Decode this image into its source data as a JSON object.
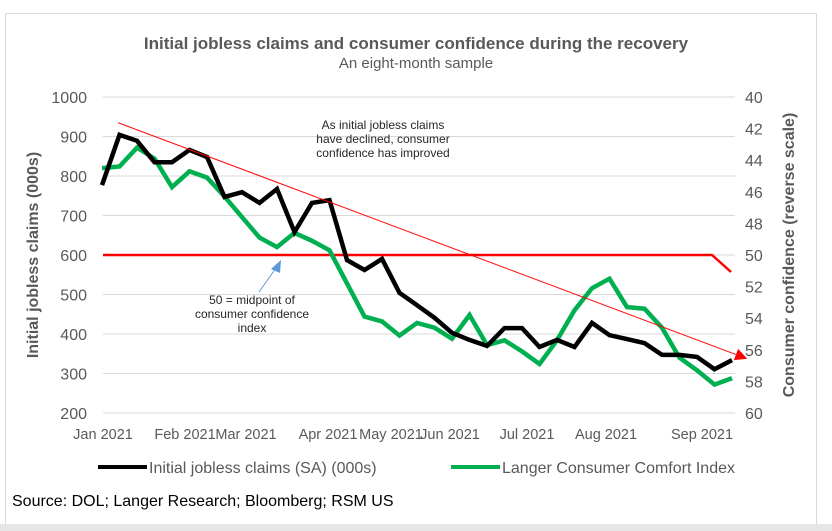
{
  "chart_data": {
    "type": "line",
    "title": "Initial jobless claims and consumer confidence during the recovery",
    "subtitle": "An eight-month sample",
    "xlabel": "",
    "ylabel_left": "Initial jobless claims (000s)",
    "ylabel_right": "Consumer confidence (reverse scale)",
    "x_tick_labels": [
      "Jan 2021",
      "Feb 2021",
      "Mar 2021",
      "Apr 2021",
      "May 2021",
      "Jun 2021",
      "Jul 2021",
      "Aug 2021",
      "Sep 2021"
    ],
    "ylim_left": [
      200,
      1000
    ],
    "yticks_left": [
      1000,
      900,
      800,
      700,
      600,
      500,
      400,
      300,
      200
    ],
    "ylim_right": [
      40,
      60
    ],
    "right_axis_reversed": true,
    "yticks_right": [
      40,
      42,
      44,
      46,
      48,
      50,
      52,
      54,
      56,
      58,
      60
    ],
    "grid": true,
    "legend_position": "bottom",
    "frequency": "weekly",
    "series": [
      {
        "name": "Initial jobless claims (SA) (000s)",
        "axis": "left",
        "color": "#000000",
        "values": [
          777,
          904,
          889,
          835,
          835,
          866,
          848,
          747,
          759,
          732,
          767,
          658,
          732,
          739,
          587,
          562,
          590,
          504,
          473,
          441,
          403,
          385,
          370,
          415,
          415,
          367,
          385,
          367,
          428,
          397,
          387,
          377,
          347,
          347,
          342,
          311,
          334
        ]
      },
      {
        "name": "Langer Consumer Comfort Index",
        "axis": "right",
        "color": "#00b050",
        "values": [
          44.5,
          44.4,
          43.2,
          43.9,
          45.7,
          44.7,
          45.1,
          46.3,
          47.6,
          48.9,
          49.5,
          48.6,
          49.1,
          49.7,
          51.8,
          53.9,
          54.2,
          55.1,
          54.3,
          54.6,
          55.3,
          53.8,
          55.7,
          55.4,
          56.1,
          56.9,
          55.4,
          53.5,
          52.1,
          51.5,
          53.3,
          53.4,
          54.6,
          56.5,
          57.3,
          58.2,
          57.8
        ]
      }
    ],
    "reference_line": {
      "label": "50 = midpoint of consumer confidence index",
      "value_right_axis": 50,
      "color": "#ff0000"
    },
    "trend_arrow": {
      "color": "#ff0000",
      "from_left_value": 935,
      "to_right_value": 56.3
    },
    "annotations": [
      {
        "text": [
          "As initial jobless claims",
          "have declined, consumer",
          "confidence has improved"
        ]
      },
      {
        "text": [
          "50 = midpoint of",
          "consumer confidence",
          "index"
        ]
      }
    ],
    "source": "Source: DOL; Langer Research; Bloomberg; RSM US"
  }
}
